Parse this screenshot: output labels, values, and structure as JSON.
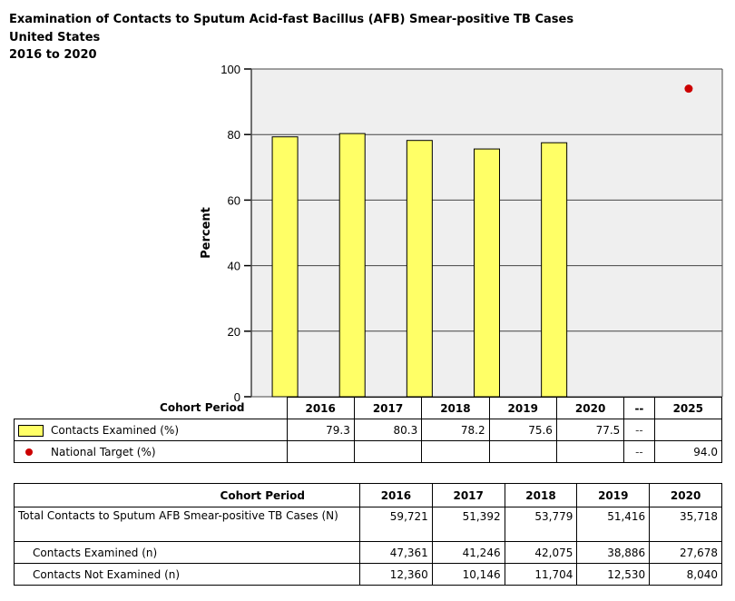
{
  "title": [
    "Examination of Contacts to Sputum Acid-fast Bacillus (AFB) Smear-positive TB Cases",
    "United States",
    "2016 to 2020"
  ],
  "chart_data": {
    "type": "bar",
    "ylabel": "Percent",
    "ylim": [
      0,
      100
    ],
    "yticks": [
      0,
      20,
      40,
      60,
      80,
      100
    ],
    "grid": true,
    "categories": [
      "2016",
      "2017",
      "2018",
      "2019",
      "2020",
      "--",
      "2025"
    ],
    "series": [
      {
        "name": "Contacts Examined (%)",
        "type": "bar",
        "color": "#ffff66",
        "values": [
          79.3,
          80.3,
          78.2,
          75.6,
          77.5,
          null,
          null
        ]
      },
      {
        "name": "National Target (%)",
        "type": "point",
        "color": "#cc0000",
        "values": [
          null,
          null,
          null,
          null,
          null,
          null,
          94.0
        ]
      }
    ]
  },
  "legend_table": {
    "header": "Cohort Period",
    "rows": [
      {
        "label": "Contacts Examined (%)",
        "cells": [
          "79.3",
          "80.3",
          "78.2",
          "75.6",
          "77.5",
          "--",
          ""
        ]
      },
      {
        "label": "National Target (%)",
        "cells": [
          "",
          "",
          "",
          "",
          "",
          "--",
          "94.0"
        ]
      }
    ]
  },
  "data_table": {
    "header": [
      "Cohort Period",
      "2016",
      "2017",
      "2018",
      "2019",
      "2020"
    ],
    "rows": [
      {
        "label": "Total Contacts to Sputum AFB Smear-positive TB Cases (N)",
        "cells": [
          "59,721",
          "51,392",
          "53,779",
          "51,416",
          "35,718"
        ]
      },
      {
        "label": "Contacts Examined (n)",
        "cells": [
          "47,361",
          "41,246",
          "42,075",
          "38,886",
          "27,678"
        ]
      },
      {
        "label": "Contacts Not Examined (n)",
        "cells": [
          "12,360",
          "10,146",
          "11,704",
          "12,530",
          "8,040"
        ]
      }
    ]
  }
}
